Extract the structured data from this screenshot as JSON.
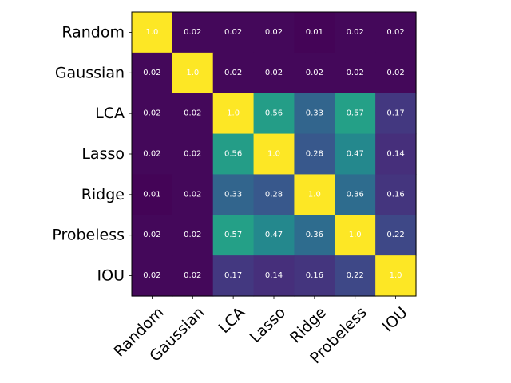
{
  "chart_data": {
    "type": "heatmap",
    "title": "",
    "xlabel": "",
    "ylabel": "",
    "row_labels": [
      "Random",
      "Gaussian",
      "LCA",
      "Lasso",
      "Ridge",
      "Probeless",
      "IOU"
    ],
    "col_labels": [
      "Random",
      "Gaussian",
      "LCA",
      "Lasso",
      "Ridge",
      "Probeless",
      "IOU"
    ],
    "cell_labels": [
      [
        "1.0",
        "0.02",
        "0.02",
        "0.02",
        "0.01",
        "0.02",
        "0.02"
      ],
      [
        "0.02",
        "1.0",
        "0.02",
        "0.02",
        "0.02",
        "0.02",
        "0.02"
      ],
      [
        "0.02",
        "0.02",
        "1.0",
        "0.56",
        "0.33",
        "0.57",
        "0.17"
      ],
      [
        "0.02",
        "0.02",
        "0.56",
        "1.0",
        "0.28",
        "0.47",
        "0.14"
      ],
      [
        "0.01",
        "0.02",
        "0.33",
        "0.28",
        "1.0",
        "0.36",
        "0.16"
      ],
      [
        "0.02",
        "0.02",
        "0.57",
        "0.47",
        "0.36",
        "1.0",
        "0.22"
      ],
      [
        "0.02",
        "0.02",
        "0.17",
        "0.14",
        "0.16",
        "0.22",
        "1.0"
      ]
    ],
    "colormap": "viridis",
    "value_range": [
      0.0,
      1.0
    ],
    "colorbar": false,
    "grid": false
  }
}
